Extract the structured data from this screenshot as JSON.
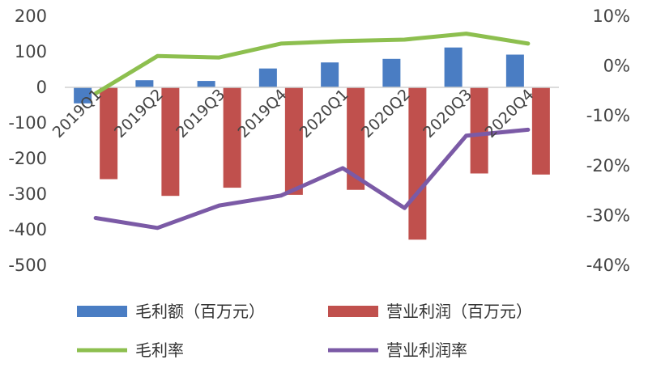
{
  "chart_data": {
    "type": "bar",
    "categories": [
      "2019Q1",
      "2019Q2",
      "2019Q3",
      "2019Q4",
      "2020Q1",
      "2020Q2",
      "2020Q3",
      "2020Q4"
    ],
    "series": [
      {
        "name": "毛利额（百万元）",
        "kind": "bar",
        "axis": "left",
        "color": "#4a7dc3",
        "values": [
          -45,
          20,
          18,
          53,
          70,
          80,
          112,
          92
        ]
      },
      {
        "name": "营业利润（百万元）",
        "kind": "bar",
        "axis": "left",
        "color": "#c0504d",
        "values": [
          -258,
          -305,
          -282,
          -302,
          -288,
          -428,
          -242,
          -245
        ]
      },
      {
        "name": "毛利率",
        "kind": "line",
        "axis": "right",
        "color": "#8dbf4f",
        "values": [
          -5.5,
          2.0,
          1.7,
          4.5,
          5.0,
          5.3,
          6.5,
          4.5
        ]
      },
      {
        "name": "营业利润率",
        "kind": "line",
        "axis": "right",
        "color": "#7b5aa6",
        "values": [
          -30.5,
          -32.5,
          -28.0,
          -26.0,
          -20.5,
          -28.5,
          -14.0,
          -12.8
        ]
      }
    ],
    "y_left": {
      "min": -500,
      "max": 200,
      "ticks": [
        "200",
        "100",
        "0",
        "-100",
        "-200",
        "-300",
        "-400",
        "-500"
      ],
      "values": [
        200,
        100,
        0,
        -100,
        -200,
        -300,
        -400,
        -500
      ]
    },
    "y_right": {
      "min": -40,
      "max": 10,
      "ticks": [
        "10%",
        "0%",
        "-10%",
        "-20%",
        "-30%",
        "-40%"
      ],
      "values": [
        10,
        0,
        -10,
        -20,
        -30,
        -40
      ]
    },
    "legend_position": "bottom",
    "grid": false
  }
}
